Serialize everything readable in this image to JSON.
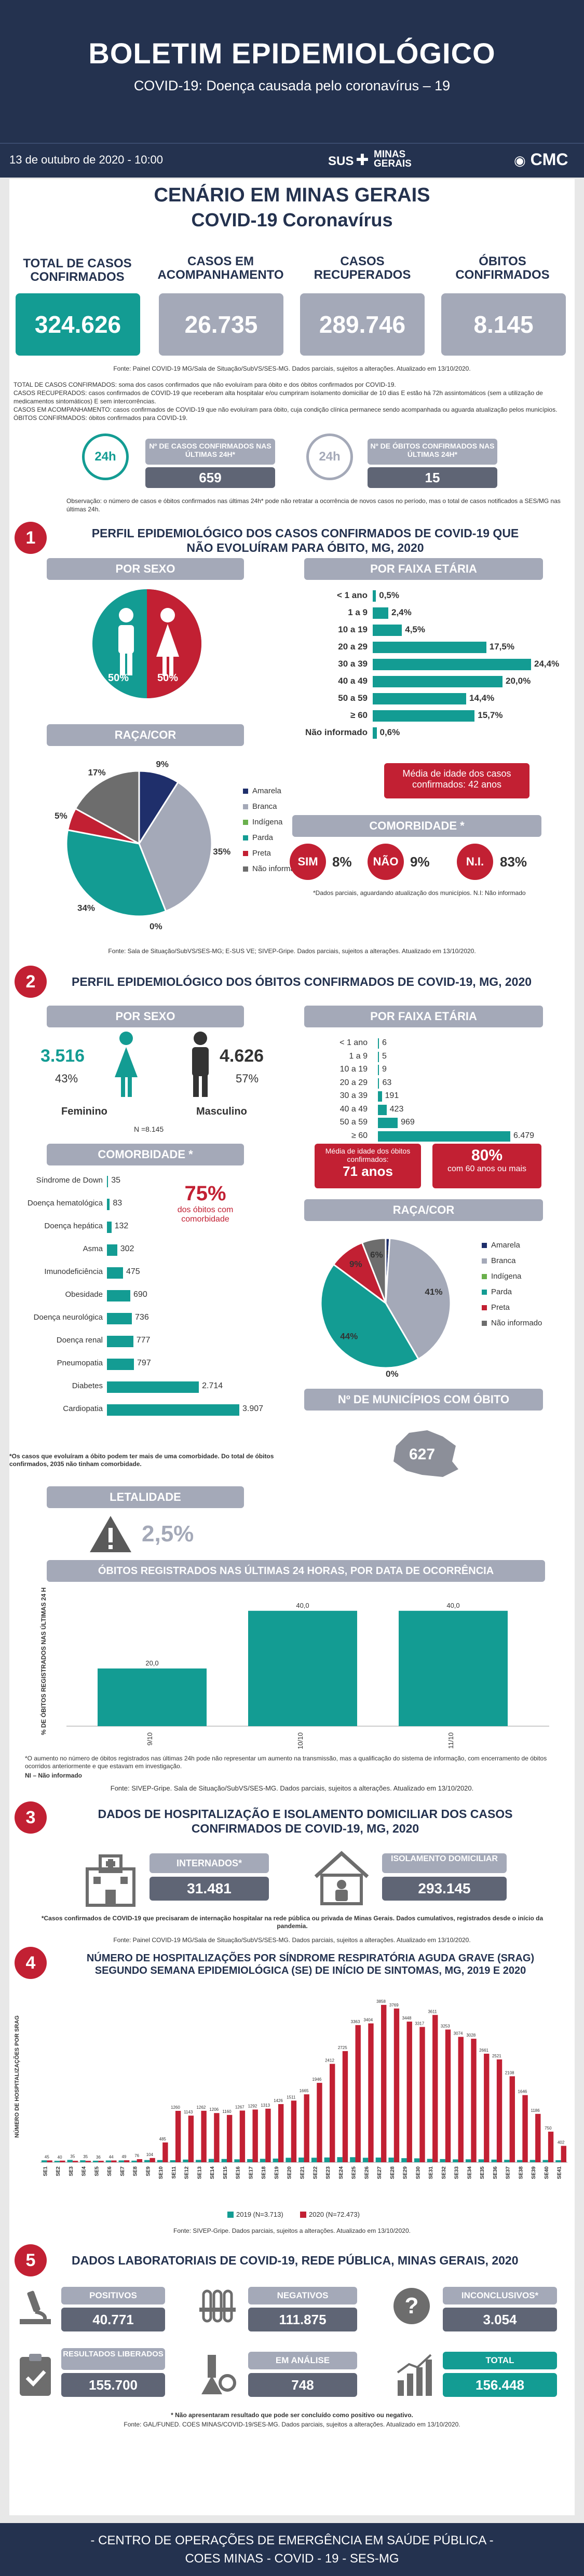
{
  "header": {
    "title": "BOLETIM EPIDEMIOLÓGICO",
    "subtitle": "COVID-19: Doença causada pelo coronavírus – 19",
    "date": "13 de outubro de 2020 - 10:00",
    "logo_sus": "SUS",
    "logo_mg_line1": "MINAS",
    "logo_mg_line2": "GERAIS",
    "logo_cmc": "CMC"
  },
  "scenario": {
    "title_line1": "CENÁRIO EM MINAS GERAIS",
    "title_line2": "COVID-19 Coronavírus",
    "kpis": [
      {
        "label": "TOTAL DE CASOS CONFIRMADOS",
        "value": "324.626"
      },
      {
        "label": "CASOS EM ACOMPANHAMENTO",
        "value": "26.735"
      },
      {
        "label": "CASOS RECUPERADOS",
        "value": "289.746"
      },
      {
        "label": "ÓBITOS CONFIRMADOS",
        "value": "8.145"
      }
    ],
    "source": "Fonte: Painel COVID-19 MG/Sala de Situação/SubVS/SES-MG. Dados parciais, sujeitos a alterações. Atualizado em 13/10/2020.",
    "definitions": [
      "TOTAL DE CASOS CONFIRMADOS: soma dos casos confirmados que não evoluíram para óbito e dos óbitos confirmados por COVID-19.",
      "CASOS RECUPERADOS: casos confirmados de COVID-19 que receberam alta hospitalar e/ou cumpriram isolamento domiciliar de 10 dias E estão há 72h assintomáticos (sem a utilização de medicamentos sintomáticos) E sem intercorrências.",
      "CASOS EM ACOMPANHAMENTO: casos confirmados de COVID-19 que não evoluíram para óbito, cuja condição clínica permanece sendo acompanhada ou aguarda atualização pelos municípios.",
      "ÓBITOS CONFIRMADOS: óbitos confirmados para COVID-19."
    ],
    "last24_cases_label": "Nº DE CASOS CONFIRMADOS NAS ÚLTIMAS 24H*",
    "last24_cases_value": "659",
    "last24_deaths_label": "Nº DE ÓBITOS CONFIRMADOS NAS ÚLTIMAS 24H*",
    "last24_deaths_value": "15",
    "badge_24h": "24h",
    "observation": "Observação: o número de casos e óbitos confirmados nas últimas 24h* pode não retratar a ocorrência de novos casos no período, mas o total de casos notificados a SES/MG nas últimas 24h."
  },
  "section1": {
    "number": "1",
    "title": "PERFIL EPIDEMIOLÓGICO DOS CASOS CONFIRMADOS DE COVID-19 QUE NÃO EVOLUÍRAM PARA ÓBITO, MG, 2020",
    "sex_title": "POR SEXO",
    "sex_male": "50%",
    "sex_female": "50%",
    "age_title": "POR FAIXA ETÁRIA",
    "age_bars": [
      {
        "label": "< 1 ano",
        "value": 0.5,
        "text": "0,5%"
      },
      {
        "label": "1 a 9",
        "value": 2.4,
        "text": "2,4%"
      },
      {
        "label": "10 a 19",
        "value": 4.5,
        "text": "4,5%"
      },
      {
        "label": "20 a 29",
        "value": 17.5,
        "text": "17,5%"
      },
      {
        "label": "30 a 39",
        "value": 24.4,
        "text": "24,4%"
      },
      {
        "label": "40 a 49",
        "value": 20.0,
        "text": "20,0%"
      },
      {
        "label": "50 a 59",
        "value": 14.4,
        "text": "14,4%"
      },
      {
        "label": "≥ 60",
        "value": 15.7,
        "text": "15,7%"
      },
      {
        "label": "Não informado",
        "value": 0.6,
        "text": "0,6%"
      }
    ],
    "age_note": "Média de idade dos casos confirmados: 42 anos",
    "race_title": "RAÇA/COR",
    "race_pie": [
      {
        "name": "Amarela",
        "value": 9,
        "text": "9%",
        "color": "#1f2f6b"
      },
      {
        "name": "Branca",
        "value": 35,
        "text": "35%",
        "color": "#a4a9b8"
      },
      {
        "name": "Indígena",
        "value": 0,
        "text": "0%",
        "color": "#6ab04c"
      },
      {
        "name": "Parda",
        "value": 34,
        "text": "34%",
        "color": "#139c93"
      },
      {
        "name": "Preta",
        "value": 5,
        "text": "5%",
        "color": "#c22033"
      },
      {
        "name": "Não informado",
        "value": 17,
        "text": "17%",
        "color": "#6d6d6d"
      }
    ],
    "comorb_title": "COMORBIDADE *",
    "comorb_sim_label": "SIM",
    "comorb_sim": "8%",
    "comorb_nao_label": "NÃO",
    "comorb_nao": "9%",
    "comorb_ni_label": "N.I.",
    "comorb_ni": "83%",
    "comorb_note": "*Dados parciais, aguardando atualização dos municípios. N.I: Não informado",
    "source": "Fonte: Sala de Situação/SubVS/SES-MG; E-SUS VE; SIVEP-Gripe. Dados parciais, sujeitos a alterações. Atualizado em 13/10/2020."
  },
  "section2": {
    "number": "2",
    "title": "PERFIL EPIDEMIOLÓGICO DOS ÓBITOS CONFIRMADOS DE COVID-19, MG, 2020",
    "sex_title": "POR SEXO",
    "female_count": "3.516",
    "female_pct": "43%",
    "female_label": "Feminino",
    "male_count": "4.626",
    "male_pct": "57%",
    "male_label": "Masculino",
    "n_note": "N =8.145",
    "age_title": "POR FAIXA ETÁRIA",
    "age_bars": [
      {
        "label": "< 1 ano",
        "value": 6
      },
      {
        "label": "1 a 9",
        "value": 5
      },
      {
        "label": "10 a 19",
        "value": 9
      },
      {
        "label": "20 a 29",
        "value": 63
      },
      {
        "label": "30 a 39",
        "value": 191
      },
      {
        "label": "40 a 49",
        "value": 423
      },
      {
        "label": "50 a 59",
        "value": 969
      },
      {
        "label": "≥ 60",
        "value": 6479
      }
    ],
    "age_bar_texts": [
      "6",
      "5",
      "9",
      "63",
      "191",
      "423",
      "969",
      "6.479"
    ],
    "age_note1": "Média de idade dos óbitos confirmados:",
    "age_note1_value": "71 anos",
    "age_note2_value": "80%",
    "age_note2": "com 60 anos ou mais",
    "comorb_title": "COMORBIDADE *",
    "comorb_bars": [
      {
        "label": "Síndrome de Down",
        "value": 35,
        "text": "35"
      },
      {
        "label": "Doença hematológica",
        "value": 83,
        "text": "83"
      },
      {
        "label": "Doença hepática",
        "value": 132,
        "text": "132"
      },
      {
        "label": "Asma",
        "value": 302,
        "text": "302"
      },
      {
        "label": "Imunodeficiência",
        "value": 475,
        "text": "475"
      },
      {
        "label": "Obesidade",
        "value": 690,
        "text": "690"
      },
      {
        "label": "Doença neurológica",
        "value": 736,
        "text": "736"
      },
      {
        "label": "Doença renal",
        "value": 777,
        "text": "777"
      },
      {
        "label": "Pneumopatia",
        "value": 797,
        "text": "797"
      },
      {
        "label": "Diabetes",
        "value": 2714,
        "text": "2.714"
      },
      {
        "label": "Cardiopatia",
        "value": 3907,
        "text": "3.907"
      }
    ],
    "comorb_pct": "75%",
    "comorb_pct_note": "dos óbitos com comorbidade",
    "comorb_footnote": "*Os casos que evoluíram a óbito podem ter mais de uma comorbidade. Do total de óbitos confirmados, 2035 não tinham comorbidade.",
    "race_title": "RAÇA/COR",
    "race_pie": [
      {
        "name": "Amarela",
        "value": 1,
        "text": "1%",
        "color": "#1f2f6b"
      },
      {
        "name": "Branca",
        "value": 41,
        "text": "41%",
        "color": "#a4a9b8"
      },
      {
        "name": "Indígena",
        "value": 0,
        "text": "0%",
        "color": "#6ab04c"
      },
      {
        "name": "Parda",
        "value": 44,
        "text": "44%",
        "color": "#139c93"
      },
      {
        "name": "Preta",
        "value": 9,
        "text": "9%",
        "color": "#c22033"
      },
      {
        "name": "Não informado",
        "value": 6,
        "text": "6%",
        "color": "#6d6d6d"
      }
    ],
    "municipios_title": "Nº DE MUNICÍPIOS COM ÓBITO",
    "municipios_value": "627",
    "lethality_title": "LETALIDADE",
    "lethality_value": "2,5%",
    "deaths24_title": "ÓBITOS REGISTRADOS NAS ÚLTIMAS 24 HORAS, POR DATA DE OCORRÊNCIA",
    "deaths24_note": "*O aumento no número de óbitos registrados nas últimas 24h pode não representar um aumento na transmissão, mas a qualificação do sistema de informação, com encerramento de óbitos ocorridos anteriormente e que estavam em investigação.",
    "deaths24_ni": "NI – Não informado",
    "source": "Fonte: SIVEP-Gripe. Sala de Situação/SubVS/SES-MG. Dados parciais, sujeitos a alterações. Atualizado em 13/10/2020."
  },
  "section3": {
    "number": "3",
    "title": "DADOS DE HOSPITALIZAÇÃO E ISOLAMENTO DOMICILIAR DOS CASOS CONFIRMADOS DE COVID-19, MG, 2020",
    "internados_label": "INTERNADOS*",
    "internados_value": "31.481",
    "isolamento_label": "ISOLAMENTO DOMICILIAR",
    "isolamento_value": "293.145",
    "note": "*Casos confirmados de COVID-19 que precisaram de internação hospitalar na rede pública ou privada de Minas Gerais. Dados cumulativos, registrados desde o início da pandemia.",
    "source": "Fonte: Painel COVID-19 MG/Sala de Situação/SubVS/SES-MG. Dados parciais, sujeitos a alterações. Atualizado em 13/10/2020."
  },
  "section4": {
    "number": "4",
    "title": "NÚMERO DE HOSPITALIZAÇÕES POR SÍNDROME RESPIRATÓRIA AGUDA GRAVE (SRAG) SEGUNDO SEMANA EPIDEMIOLÓGICA (SE) DE INÍCIO DE SINTOMAS, MG, 2019 E 2020",
    "source": "Fonte: SIVEP-Gripe. Dados parciais, sujeitos a alterações. Atualizado em 13/10/2020."
  },
  "section5": {
    "number": "5",
    "title": "DADOS LABORATORIAIS DE COVID-19, REDE PÚBLICA, MINAS GERAIS, 2020",
    "positivos_label": "POSITIVOS",
    "positivos_value": "40.771",
    "negativos_label": "NEGATIVOS",
    "negativos_value": "111.875",
    "inconclusivos_label": "INCONCLUSIVOS*",
    "inconclusivos_value": "3.054",
    "liberados_label": "RESULTADOS LIBERADOS",
    "liberados_value": "155.700",
    "analise_label": "EM ANÁLISE",
    "analise_value": "748",
    "total_label": "TOTAL",
    "total_value": "156.448",
    "note": "* Não apresentaram resultado que pode ser concluído como positivo ou negativo.",
    "source": "Fonte: GAL/FUNED. COES MINAS/COVID-19/SES-MG. Dados parciais, sujeitos a alterações. Atualizado em 13/10/2020."
  },
  "footer": {
    "line1": "- CENTRO DE OPERAÇÕES DE EMERGÊNCIA EM SAÚDE PÚBLICA -",
    "line2": "COES MINAS - COVID - 19 - SES-MG"
  },
  "chart_data": [
    {
      "type": "bar",
      "title": "ÓBITOS REGISTRADOS NAS ÚLTIMAS 24 HORAS, POR DATA DE OCORRÊNCIA",
      "xlabel": "",
      "ylabel": "% DE ÓBITOS REGISTRADOS NAS ÚLTIMAS 24 H",
      "categories": [
        "9/10",
        "10/10",
        "11/10"
      ],
      "values": [
        20.0,
        40.0,
        40.0
      ],
      "value_labels": [
        "20,0",
        "40,0",
        "40,0"
      ],
      "ylim": [
        0,
        45
      ]
    },
    {
      "type": "bar",
      "title": "NÚMERO DE HOSPITALIZAÇÕES POR SÍNDROME RESPIRATÓRIA AGUDA GRAVE (SRAG) SEGUNDO SEMANA EPIDEMIOLÓGICA (SE) DE INÍCIO DE SINTOMAS, MG, 2019 E 2020",
      "ylabel": "NÚMERO DE HOSPITALIZAÇÕES POR SRAG",
      "categories": [
        "SE1",
        "SE2",
        "SE3",
        "SE4",
        "SE5",
        "SE6",
        "SE7",
        "SE8",
        "SE9",
        "SE10",
        "SE11",
        "SE12",
        "SE13",
        "SE14",
        "SE15",
        "SE16",
        "SE17",
        "SE18",
        "SE19",
        "SE20",
        "SE21",
        "SE22",
        "SE23",
        "SE24",
        "SE25",
        "SE26",
        "SE27",
        "SE28",
        "SE29",
        "SE30",
        "SE31",
        "SE32",
        "SE33",
        "SE34",
        "SE35",
        "SE36",
        "SE37",
        "SE38",
        "SE39",
        "SE40",
        "SE41"
      ],
      "series": [
        {
          "name": "2019 (N=3.713)",
          "color": "#139c93",
          "values": [
            47,
            35,
            57,
            48,
            38,
            44,
            45,
            39,
            54,
            54,
            50,
            65,
            58,
            82,
            80,
            72,
            77,
            84,
            90,
            110,
            115,
            111,
            117,
            125,
            124,
            110,
            115,
            114,
            100,
            96,
            83,
            78,
            70,
            72,
            72,
            65,
            60,
            55,
            57,
            56,
            50
          ]
        },
        {
          "name": "2020 (N=72.473)",
          "color": "#c22033",
          "values": [
            45,
            40,
            35,
            35,
            36,
            44,
            49,
            76,
            104,
            485,
            1260,
            1143,
            1262,
            1206,
            1160,
            1267,
            1292,
            1313,
            1426,
            1511,
            1665,
            1946,
            2412,
            2725,
            3363,
            3404,
            3858,
            3769,
            3448,
            3317,
            3611,
            3253,
            3074,
            3028,
            2661,
            2521,
            2108,
            1646,
            1186,
            750,
            402
          ]
        }
      ],
      "value_labels_2020": [
        "45",
        "40",
        "35",
        "35",
        "36",
        "44",
        "49",
        "76",
        "104",
        "485",
        "1260",
        "1143",
        "1262",
        "1206",
        "1160",
        "1267",
        "1292",
        "1313",
        "1426",
        "1511",
        "1665",
        "1946",
        "2412",
        "2725",
        "3363",
        "3404",
        "3858",
        "3769",
        "3448",
        "3317",
        "3611",
        "3253",
        "3074",
        "3028",
        "2661",
        "2521",
        "2108",
        "1646",
        "1186",
        "750",
        "402"
      ],
      "ylim": [
        0,
        4200
      ],
      "legend": "bottom"
    }
  ]
}
